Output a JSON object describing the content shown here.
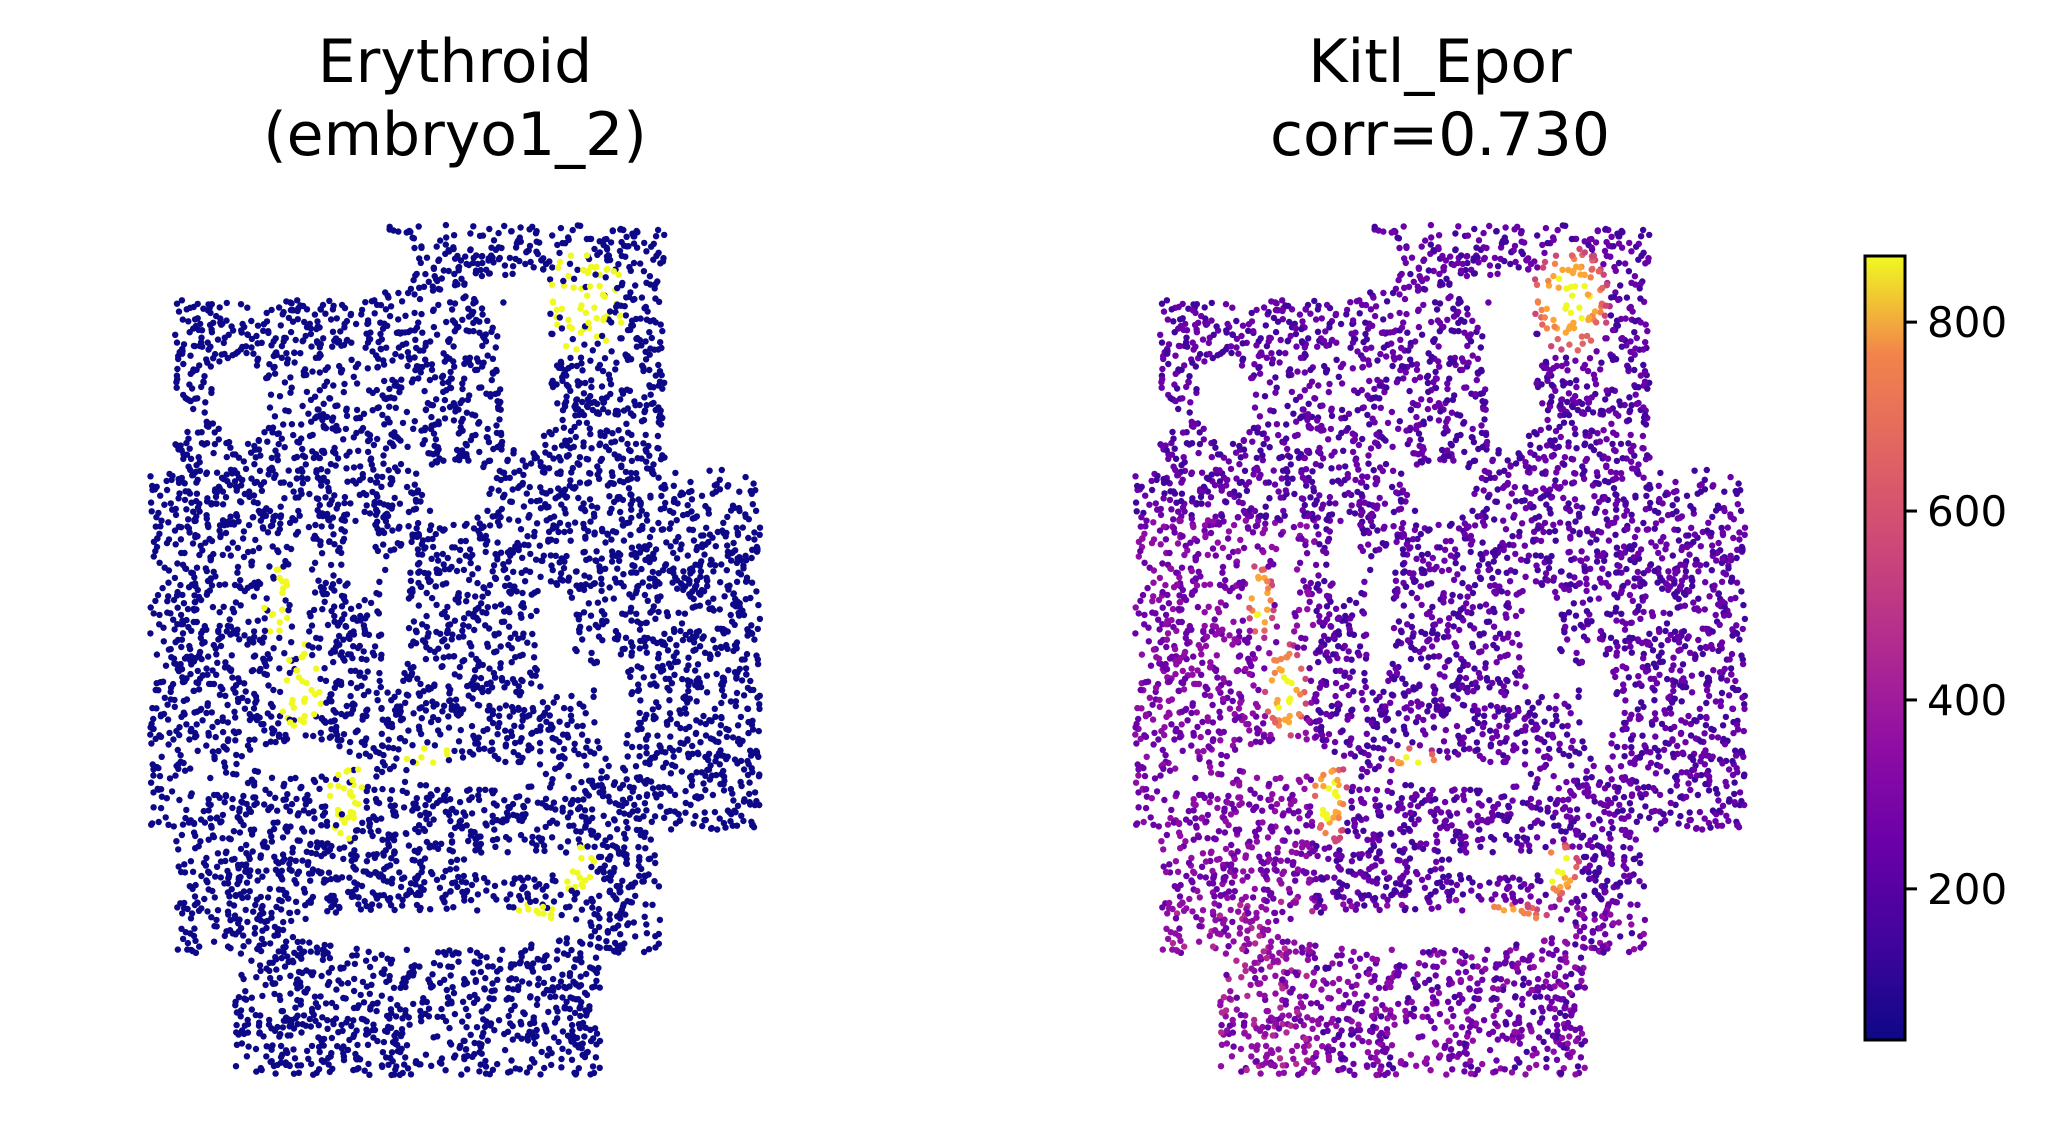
{
  "panels": [
    {
      "title_line1": "Erythroid",
      "title_line2": "(embryo1_2)"
    },
    {
      "title_line1": "Kitl_Epor",
      "title_line2": "corr=0.730"
    }
  ],
  "chart_data": [
    {
      "type": "scatter",
      "title": "Erythroid (embryo1_2)",
      "xlabel": "",
      "ylabel": "",
      "axes_visible": false,
      "grid": false,
      "legend": "none",
      "colors": {
        "background_cells": "#0d0887",
        "erythroid_cells": "#f0f921"
      },
      "categories": [
        "other",
        "Erythroid"
      ],
      "description": "Spatial map of embryo section; Erythroid cells highlighted in yellow, other cells dark blue"
    },
    {
      "type": "scatter",
      "title": "Kitl_Epor corr=0.730",
      "xlabel": "",
      "ylabel": "",
      "axes_visible": false,
      "grid": false,
      "colormap": "plasma",
      "color_range": [
        40,
        870
      ],
      "colorbar": {
        "ticks": [
          200,
          400,
          600,
          800
        ],
        "tick_labels": [
          "200",
          "400",
          "600",
          "800"
        ],
        "placement": "right"
      },
      "correlation": 0.73
    }
  ]
}
